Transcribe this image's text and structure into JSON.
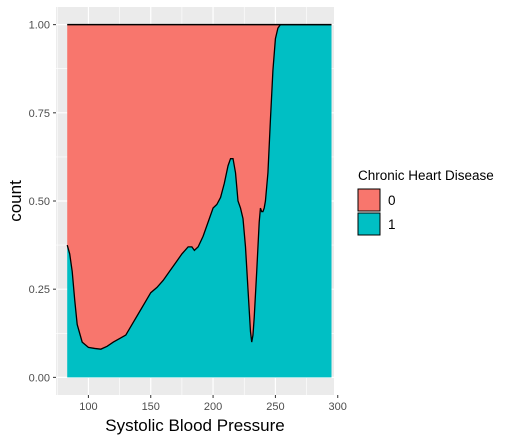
{
  "chart_data": {
    "type": "area",
    "subtype": "stacked-density-fill",
    "title": "",
    "xlabel": "Systolic Blood Pressure",
    "ylabel": "count",
    "xlim": [
      74,
      297
    ],
    "ylim": [
      -0.05,
      1.05
    ],
    "x_ticks": [
      100,
      150,
      200,
      250,
      300
    ],
    "x_tick_labels": [
      "100",
      "150",
      "200",
      "250",
      "300"
    ],
    "y_ticks": [
      0,
      0.25,
      0.5,
      0.75,
      1
    ],
    "y_tick_labels": [
      "0.00",
      "0.25",
      "0.50",
      "0.75",
      "1.00"
    ],
    "grid": true,
    "legend": {
      "title": "Chronic Heart Disease",
      "placement": "right",
      "entries": [
        {
          "label": "0",
          "color": "#F8766D"
        },
        {
          "label": "1",
          "color": "#00BFC4"
        }
      ]
    },
    "x": [
      83,
      85,
      87,
      89,
      91,
      95,
      100,
      105,
      110,
      115,
      120,
      125,
      130,
      135,
      140,
      145,
      150,
      155,
      160,
      165,
      170,
      175,
      180,
      183,
      185,
      188,
      192,
      197,
      200,
      203,
      206,
      209,
      212,
      214,
      216,
      218,
      220,
      222,
      224,
      226,
      228,
      230,
      231,
      232,
      233,
      235,
      237,
      238,
      239,
      240,
      241,
      242,
      244,
      246,
      248,
      250,
      252,
      254,
      256,
      258,
      260,
      265,
      270,
      275,
      280,
      285,
      290,
      295
    ],
    "series": [
      {
        "name": "1",
        "color": "#00BFC4",
        "values": [
          0.375,
          0.35,
          0.3,
          0.22,
          0.15,
          0.1,
          0.085,
          0.082,
          0.08,
          0.088,
          0.1,
          0.11,
          0.12,
          0.15,
          0.18,
          0.21,
          0.24,
          0.255,
          0.275,
          0.3,
          0.325,
          0.35,
          0.37,
          0.37,
          0.36,
          0.37,
          0.4,
          0.45,
          0.48,
          0.49,
          0.51,
          0.55,
          0.6,
          0.62,
          0.62,
          0.58,
          0.5,
          0.48,
          0.45,
          0.37,
          0.25,
          0.13,
          0.1,
          0.12,
          0.17,
          0.3,
          0.44,
          0.48,
          0.47,
          0.47,
          0.48,
          0.5,
          0.58,
          0.73,
          0.87,
          0.96,
          0.99,
          1.0,
          1.0,
          1.0,
          1.0,
          1.0,
          1.0,
          1.0,
          1.0,
          1.0,
          1.0,
          1.0
        ]
      },
      {
        "name": "0",
        "color": "#F8766D",
        "fill_from_series_1_to": 1.0
      }
    ]
  }
}
